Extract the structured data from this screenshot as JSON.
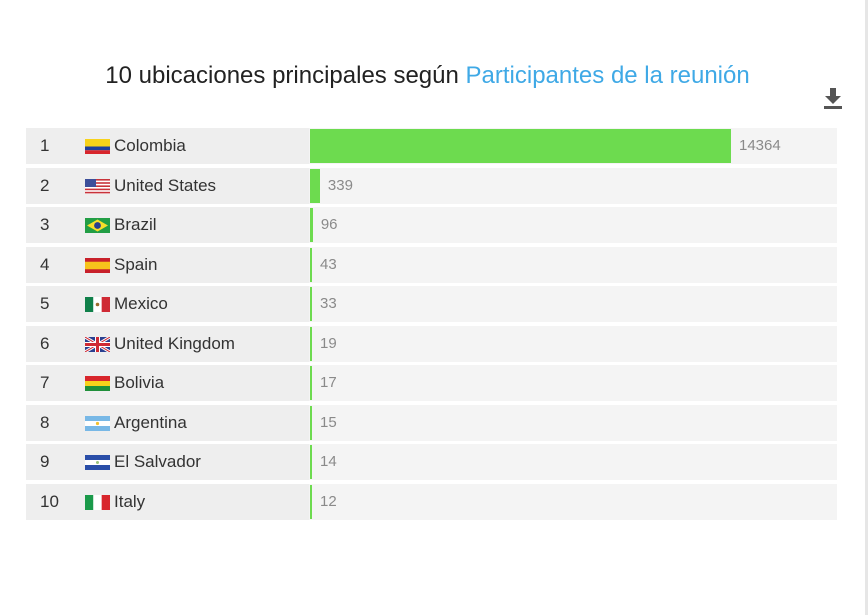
{
  "title": {
    "prefix": "10 ubicaciones principales según",
    "highlight": "Participantes de la reunión"
  },
  "download_icon": "download-icon",
  "colors": {
    "bar": "#6ddb4f",
    "highlight": "#3fa9e6"
  },
  "chart_data": {
    "type": "bar",
    "orientation": "horizontal",
    "title": "10 ubicaciones principales según Participantes de la reunión",
    "ranks": [
      "1",
      "2",
      "3",
      "4",
      "5",
      "6",
      "7",
      "8",
      "9",
      "10"
    ],
    "categories": [
      "Colombia",
      "United States",
      "Brazil",
      "Spain",
      "Mexico",
      "United Kingdom",
      "Bolivia",
      "Argentina",
      "El Salvador",
      "Italy"
    ],
    "flags": [
      "colombia-flag-icon",
      "united-states-flag-icon",
      "brazil-flag-icon",
      "spain-flag-icon",
      "mexico-flag-icon",
      "united-kingdom-flag-icon",
      "bolivia-flag-icon",
      "argentina-flag-icon",
      "el-salvador-flag-icon",
      "italy-flag-icon"
    ],
    "values": [
      14364,
      339,
      96,
      43,
      33,
      19,
      17,
      15,
      14,
      12
    ],
    "xlim": [
      0,
      14364
    ]
  }
}
